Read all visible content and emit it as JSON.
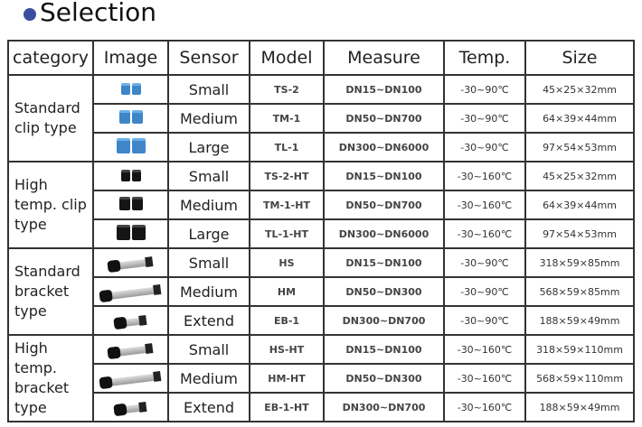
{
  "title": "Selection",
  "colors": {
    "bullet": "#3b4fa0",
    "clip_standard": "#3f86c9",
    "clip_hightemp": "#151515"
  },
  "headers": [
    "category",
    "Image",
    "Sensor",
    "Model",
    "Measure",
    "Temp.",
    "Size"
  ],
  "groups": [
    {
      "category": "Standard clip type",
      "image_icon": "blue-clip-sensor-icon",
      "rows": [
        {
          "sensor": "Small",
          "model": "TS-2",
          "measure": "DN15~DN100",
          "temp": "-30~90℃",
          "size": "45×25×32mm"
        },
        {
          "sensor": "Medium",
          "model": "TM-1",
          "measure": "DN50~DN700",
          "temp": "-30~90℃",
          "size": "64×39×44mm"
        },
        {
          "sensor": "Large",
          "model": "TL-1",
          "measure": "DN300~DN6000",
          "temp": "-30~90℃",
          "size": "97×54×53mm"
        }
      ]
    },
    {
      "category": "High temp. clip type",
      "image_icon": "black-clip-sensor-icon",
      "rows": [
        {
          "sensor": "Small",
          "model": "TS-2-HT",
          "measure": "DN15~DN100",
          "temp": "-30~160℃",
          "size": "45×25×32mm"
        },
        {
          "sensor": "Medium",
          "model": "TM-1-HT",
          "measure": "DN50~DN700",
          "temp": "-30~160℃",
          "size": "64×39×44mm"
        },
        {
          "sensor": "Large",
          "model": "TL-1-HT",
          "measure": "DN300~DN6000",
          "temp": "-30~160℃",
          "size": "97×54×53mm"
        }
      ]
    },
    {
      "category": "Standard bracket type",
      "image_icon": "bracket-sensor-icon",
      "rows": [
        {
          "sensor": "Small",
          "model": "HS",
          "measure": "DN15~DN100",
          "temp": "-30~90℃",
          "size": "318×59×85mm"
        },
        {
          "sensor": "Medium",
          "model": "HM",
          "measure": "DN50~DN300",
          "temp": "-30~90℃",
          "size": "568×59×85mm"
        },
        {
          "sensor": "Extend",
          "model": "EB-1",
          "measure": "DN300~DN700",
          "temp": "-30~90℃",
          "size": "188×59×49mm"
        }
      ]
    },
    {
      "category": "High temp. bracket type",
      "image_icon": "bracket-sensor-icon",
      "rows": [
        {
          "sensor": "Small",
          "model": "HS-HT",
          "measure": "DN15~DN100",
          "temp": "-30~160℃",
          "size": "318×59×110mm"
        },
        {
          "sensor": "Medium",
          "model": "HM-HT",
          "measure": "DN50~DN300",
          "temp": "-30~160℃",
          "size": "568×59×110mm"
        },
        {
          "sensor": "Extend",
          "model": "EB-1-HT",
          "measure": "DN300~DN700",
          "temp": "-30~160℃",
          "size": "188×59×49mm"
        }
      ]
    }
  ]
}
